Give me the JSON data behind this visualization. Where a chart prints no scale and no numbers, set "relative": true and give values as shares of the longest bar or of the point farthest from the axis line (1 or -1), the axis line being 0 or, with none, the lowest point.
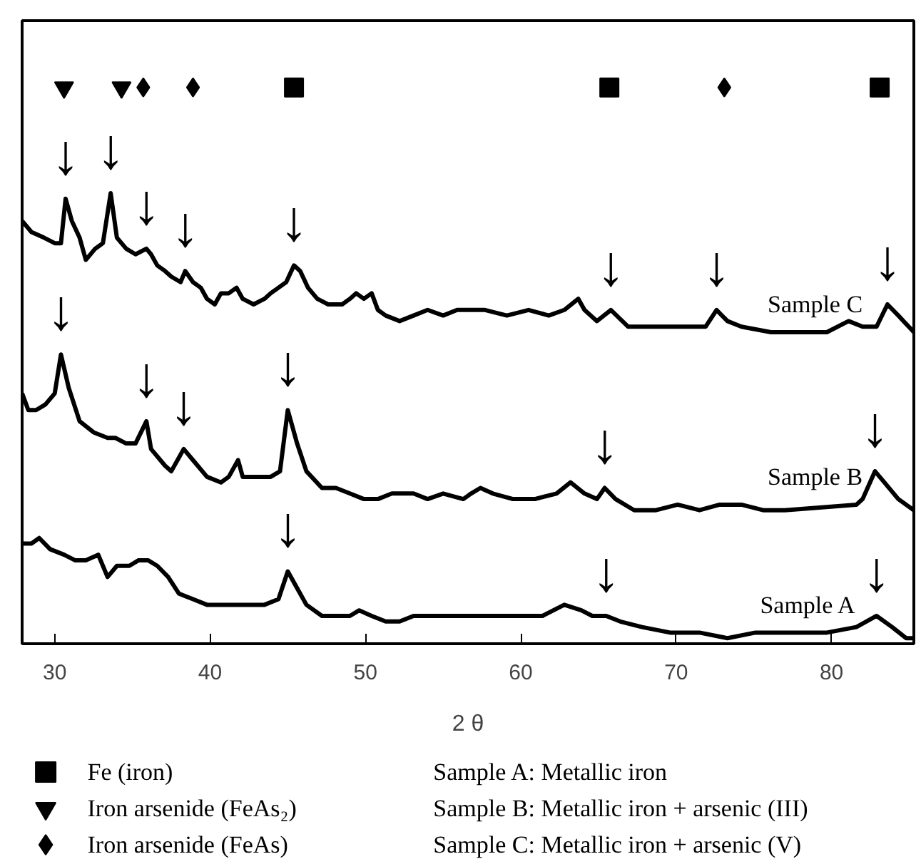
{
  "chart_data": {
    "type": "line",
    "relative": true,
    "xlabel": "2 θ",
    "xlim": [
      27.9,
      85.3
    ],
    "xticks": [
      30,
      40,
      50,
      60,
      70,
      80
    ],
    "grid": false,
    "legend": "bottom",
    "tick_labels": "x",
    "line_style": "solid",
    "marker": "none",
    "series": [
      {
        "name": "Sample A",
        "color": "#000000",
        "x": [
          27.9,
          28.5,
          29.0,
          29.7,
          30.6,
          31.3,
          32.0,
          32.8,
          33.4,
          34.0,
          34.8,
          35.4,
          36.0,
          36.6,
          37.3,
          38.0,
          38.9,
          39.8,
          40.7,
          41.7,
          42.6,
          43.5,
          44.4,
          45.0,
          45.6,
          46.2,
          47.2,
          48.1,
          49.0,
          49.6,
          50.4,
          51.3,
          52.2,
          53.1,
          55.0,
          56.8,
          57.7,
          59.5,
          61.4,
          62.8,
          63.9,
          64.6,
          65.5,
          66.4,
          67.8,
          69.6,
          71.5,
          73.3,
          75.1,
          77.0,
          79.7,
          81.6,
          82.9,
          83.9,
          84.8,
          85.3
        ],
        "values": [
          0.18,
          0.18,
          0.19,
          0.17,
          0.16,
          0.15,
          0.15,
          0.16,
          0.12,
          0.14,
          0.14,
          0.15,
          0.15,
          0.14,
          0.12,
          0.09,
          0.08,
          0.07,
          0.07,
          0.07,
          0.07,
          0.07,
          0.08,
          0.13,
          0.1,
          0.07,
          0.05,
          0.05,
          0.05,
          0.06,
          0.05,
          0.04,
          0.04,
          0.05,
          0.05,
          0.05,
          0.05,
          0.05,
          0.05,
          0.07,
          0.06,
          0.05,
          0.05,
          0.04,
          0.03,
          0.02,
          0.02,
          0.01,
          0.02,
          0.02,
          0.02,
          0.03,
          0.05,
          0.03,
          0.01,
          0.01
        ]
      },
      {
        "name": "Sample B",
        "color": "#000000",
        "x": [
          27.9,
          28.3,
          28.8,
          29.4,
          30.0,
          30.4,
          30.9,
          31.6,
          32.5,
          33.4,
          33.9,
          34.6,
          35.2,
          35.9,
          36.2,
          37.1,
          37.5,
          38.3,
          38.9,
          39.8,
          40.7,
          41.2,
          41.8,
          42.1,
          43.0,
          43.9,
          44.5,
          45.0,
          45.6,
          46.2,
          47.2,
          48.1,
          49.0,
          49.9,
          50.8,
          51.7,
          53.1,
          54.0,
          55.0,
          56.3,
          56.8,
          57.4,
          58.2,
          59.5,
          60.9,
          62.3,
          63.2,
          64.1,
          64.9,
          65.4,
          66.1,
          67.3,
          68.7,
          70.1,
          71.5,
          72.8,
          74.2,
          75.6,
          77.0,
          81.6,
          82.0,
          82.8,
          83.4,
          84.3,
          85.3
        ],
        "values": [
          0.45,
          0.42,
          0.42,
          0.43,
          0.45,
          0.52,
          0.46,
          0.4,
          0.38,
          0.37,
          0.37,
          0.36,
          0.36,
          0.4,
          0.35,
          0.32,
          0.31,
          0.35,
          0.33,
          0.3,
          0.29,
          0.3,
          0.33,
          0.3,
          0.3,
          0.3,
          0.31,
          0.42,
          0.36,
          0.31,
          0.28,
          0.28,
          0.27,
          0.26,
          0.26,
          0.27,
          0.27,
          0.26,
          0.27,
          0.26,
          0.27,
          0.28,
          0.27,
          0.26,
          0.26,
          0.27,
          0.29,
          0.27,
          0.26,
          0.28,
          0.26,
          0.24,
          0.24,
          0.25,
          0.24,
          0.25,
          0.25,
          0.24,
          0.24,
          0.25,
          0.26,
          0.31,
          0.29,
          0.26,
          0.24
        ]
      },
      {
        "name": "Sample C",
        "color": "#000000",
        "x": [
          27.9,
          28.5,
          29.3,
          30.0,
          30.4,
          30.7,
          31.1,
          31.6,
          32.0,
          32.6,
          33.1,
          33.6,
          34.0,
          34.6,
          35.2,
          35.9,
          36.2,
          36.6,
          37.1,
          37.5,
          38.1,
          38.4,
          38.9,
          39.4,
          39.8,
          40.3,
          40.7,
          41.2,
          41.7,
          42.1,
          42.8,
          43.5,
          43.9,
          44.4,
          44.9,
          45.4,
          45.8,
          46.3,
          46.9,
          47.6,
          48.5,
          49.0,
          49.4,
          49.9,
          50.4,
          50.8,
          51.3,
          52.2,
          53.1,
          54.0,
          55.0,
          55.9,
          56.8,
          57.7,
          59.1,
          60.5,
          61.8,
          62.8,
          63.7,
          64.1,
          64.9,
          65.8,
          66.9,
          68.7,
          70.6,
          71.9,
          72.6,
          73.3,
          74.2,
          76.1,
          77.9,
          79.7,
          81.1,
          82.0,
          82.9,
          83.6,
          84.3,
          85.3
        ],
        "values": [
          0.76,
          0.74,
          0.73,
          0.72,
          0.72,
          0.8,
          0.76,
          0.73,
          0.69,
          0.71,
          0.72,
          0.81,
          0.73,
          0.71,
          0.7,
          0.71,
          0.7,
          0.68,
          0.67,
          0.66,
          0.65,
          0.67,
          0.65,
          0.64,
          0.62,
          0.61,
          0.63,
          0.63,
          0.64,
          0.62,
          0.61,
          0.62,
          0.63,
          0.64,
          0.65,
          0.68,
          0.67,
          0.64,
          0.62,
          0.61,
          0.61,
          0.62,
          0.63,
          0.62,
          0.63,
          0.6,
          0.59,
          0.58,
          0.59,
          0.6,
          0.59,
          0.6,
          0.6,
          0.6,
          0.59,
          0.6,
          0.59,
          0.6,
          0.62,
          0.6,
          0.58,
          0.6,
          0.57,
          0.57,
          0.57,
          0.57,
          0.6,
          0.58,
          0.57,
          0.56,
          0.56,
          0.56,
          0.58,
          0.57,
          0.57,
          0.61,
          0.59,
          0.56
        ]
      },
      {
        "name": "Fe (iron)",
        "type": "scatter",
        "marker": "square",
        "color": "#000000",
        "x": [
          45.4,
          65.7,
          83.1
        ],
        "values": [
          1,
          1,
          1
        ]
      },
      {
        "name": "Iron arsenide (FeAs₂)",
        "type": "scatter",
        "marker": "triangle",
        "color": "#000000",
        "x": [
          30.6,
          34.3
        ],
        "values": [
          1,
          1
        ]
      },
      {
        "name": "Iron arsenide (FeAs)",
        "type": "scatter",
        "marker": "diamond",
        "color": "#000000",
        "x": [
          35.7,
          38.9,
          73.1
        ],
        "values": [
          1,
          1,
          1
        ]
      }
    ],
    "annotations": [
      {
        "text": "↓",
        "x": 30.7,
        "y": 0.81
      },
      {
        "text": "↓",
        "x": 33.6,
        "y": 0.82
      },
      {
        "text": "↓",
        "x": 35.9,
        "y": 0.72
      },
      {
        "text": "↓",
        "x": 38.4,
        "y": 0.68
      },
      {
        "text": "↓",
        "x": 45.4,
        "y": 0.69
      },
      {
        "text": "↓",
        "x": 65.8,
        "y": 0.61
      },
      {
        "text": "↓",
        "x": 72.6,
        "y": 0.61
      },
      {
        "text": "↓",
        "x": 83.6,
        "y": 0.62
      },
      {
        "text": "↓",
        "x": 30.4,
        "y": 0.53
      },
      {
        "text": "↓",
        "x": 35.9,
        "y": 0.41
      },
      {
        "text": "↓",
        "x": 38.3,
        "y": 0.36
      },
      {
        "text": "↓",
        "x": 45.0,
        "y": 0.43
      },
      {
        "text": "↓",
        "x": 65.4,
        "y": 0.29
      },
      {
        "text": "↓",
        "x": 82.8,
        "y": 0.32
      },
      {
        "text": "↓",
        "x": 45.0,
        "y": 0.14
      },
      {
        "text": "↓",
        "x": 65.5,
        "y": 0.06
      },
      {
        "text": "↓",
        "x": 82.9,
        "y": 0.06
      },
      "Sample A: Metallic iron",
      "Sample B: Metallic iron + arsenic (III)",
      "Sample C: Metallic iron + arsenic (V)"
    ]
  }
}
